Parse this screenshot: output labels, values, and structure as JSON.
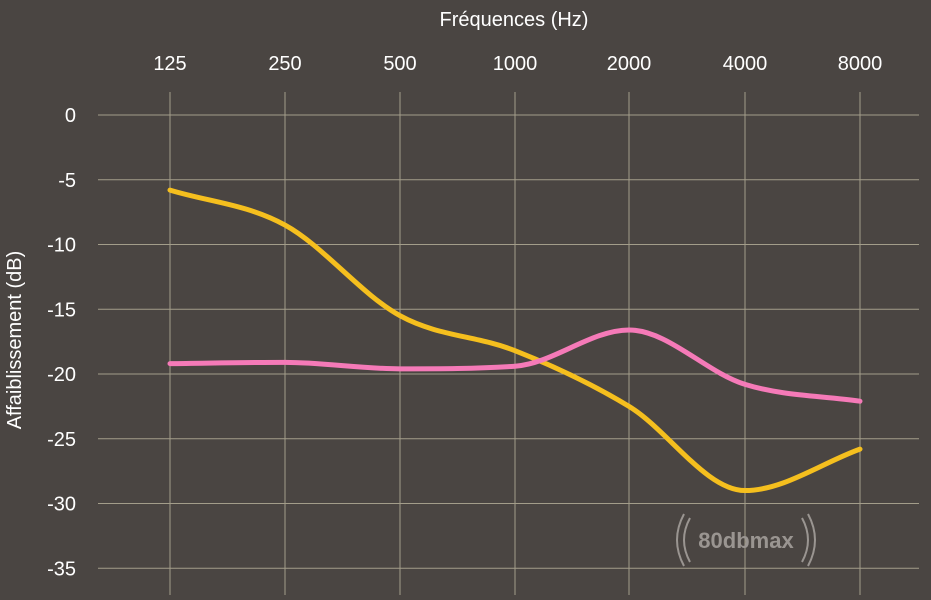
{
  "chart_data": {
    "type": "line",
    "xlabel": "Fréquences (Hz)",
    "ylabel": "Affaiblissement (dB)",
    "categories": [
      "125",
      "250",
      "500",
      "1000",
      "2000",
      "4000",
      "8000"
    ],
    "yticks": [
      "0",
      "-5",
      "-10",
      "-15",
      "-20",
      "-25",
      "-30",
      "-35"
    ],
    "ylim": [
      -35,
      0
    ],
    "x_axis_position": "top",
    "grid": true,
    "legend": "none",
    "series": [
      {
        "values": [
          -5.8,
          -8.5,
          -15.5,
          -18.2,
          -22.5,
          -29.0,
          -25.8
        ],
        "color": "#f5bf1e"
      },
      {
        "values": [
          -19.2,
          -19.1,
          -19.6,
          -19.4,
          -16.6,
          -20.8,
          -22.1
        ],
        "color": "#f57ab8"
      }
    ]
  },
  "colors": {
    "background": "#4a4542",
    "grid": "#a39d8a",
    "text": "#ffffff",
    "watermark": "#9a9591"
  },
  "watermark": {
    "text": "80dbmax"
  }
}
